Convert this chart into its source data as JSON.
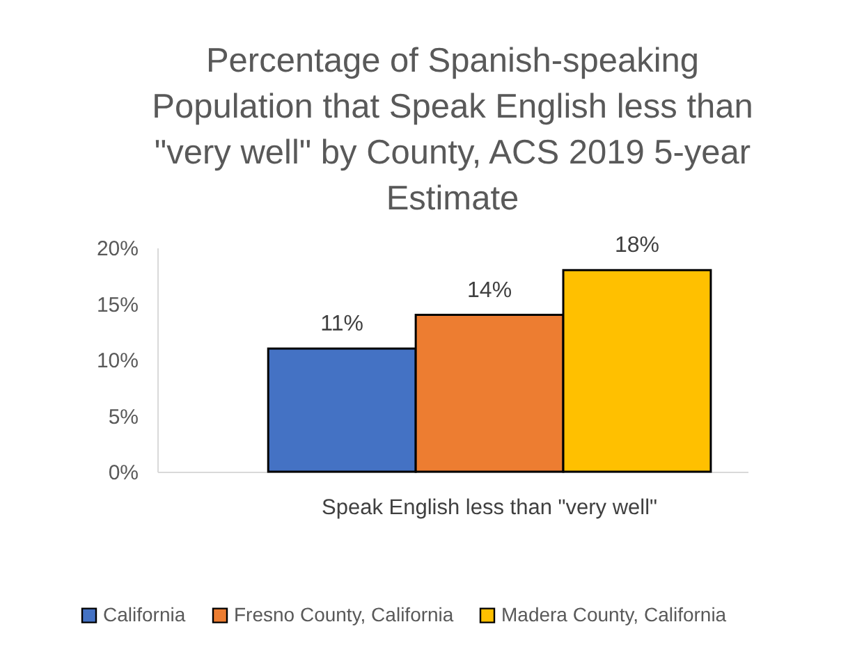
{
  "chart_data": {
    "type": "bar",
    "title": "Percentage of Spanish-speaking Population that Speak English less than \"very well\" by County, ACS 2019 5-year Estimate",
    "categories": [
      "Speak English less than \"very well\""
    ],
    "series": [
      {
        "name": "California",
        "color": "#4472c4",
        "values": [
          11
        ],
        "value_labels": [
          "11%"
        ]
      },
      {
        "name": "Fresno County, California",
        "color": "#ed7d31",
        "values": [
          14
        ],
        "value_labels": [
          "14%"
        ]
      },
      {
        "name": "Madera County, California",
        "color": "#ffc000",
        "values": [
          18
        ],
        "value_labels": [
          "18%"
        ]
      }
    ],
    "ylim": [
      0,
      20
    ],
    "yticks": [
      {
        "value": 0,
        "label": "0%"
      },
      {
        "value": 5,
        "label": "5%"
      },
      {
        "value": 10,
        "label": "10%"
      },
      {
        "value": 15,
        "label": "15%"
      },
      {
        "value": 20,
        "label": "20%"
      }
    ],
    "legend": "bottom"
  }
}
